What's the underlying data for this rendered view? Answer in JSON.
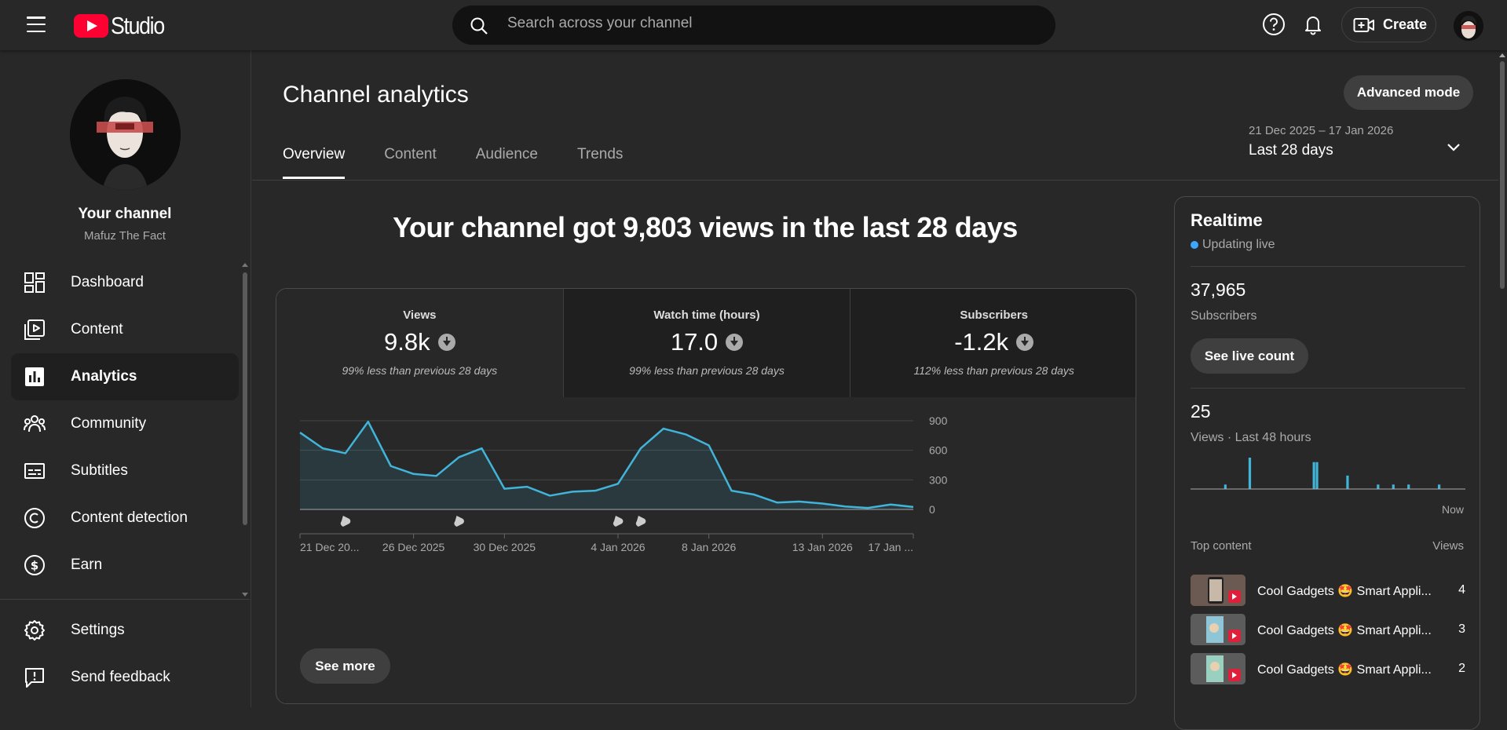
{
  "app": {
    "logo_text": "Studio"
  },
  "search": {
    "placeholder": "Search across your channel"
  },
  "header": {
    "create_label": "Create"
  },
  "channel": {
    "name": "Your channel",
    "handle": "Mafuz The Fact"
  },
  "sidebar": {
    "items": [
      {
        "label": "Dashboard",
        "icon": "dashboard-icon",
        "active": false
      },
      {
        "label": "Content",
        "icon": "content-icon",
        "active": false
      },
      {
        "label": "Analytics",
        "icon": "analytics-icon",
        "active": true
      },
      {
        "label": "Community",
        "icon": "community-icon",
        "active": false
      },
      {
        "label": "Subtitles",
        "icon": "subtitles-icon",
        "active": false
      },
      {
        "label": "Content detection",
        "icon": "content-detection-icon",
        "active": false
      },
      {
        "label": "Earn",
        "icon": "earn-icon",
        "active": false
      }
    ],
    "bottom_items": [
      {
        "label": "Settings",
        "icon": "settings-icon"
      },
      {
        "label": "Send feedback",
        "icon": "feedback-icon"
      }
    ]
  },
  "page": {
    "title": "Channel analytics",
    "advanced_mode_label": "Advanced mode",
    "tabs": [
      {
        "label": "Overview",
        "active": true
      },
      {
        "label": "Content",
        "active": false
      },
      {
        "label": "Audience",
        "active": false
      },
      {
        "label": "Trends",
        "active": false
      }
    ],
    "date_range": "21 Dec 2025 – 17 Jan 2026",
    "date_label": "Last 28 days",
    "headline": "Your channel got 9,803 views in the last 28 days",
    "see_more_label": "See more"
  },
  "metrics": [
    {
      "label": "Views",
      "value": "9.8k",
      "note": "99% less than previous 28 days",
      "selected": true
    },
    {
      "label": "Watch time (hours)",
      "value": "17.0",
      "note": "99% less than previous 28 days",
      "selected": false
    },
    {
      "label": "Subscribers",
      "value": "-1.2k",
      "note": "112% less than previous 28 days",
      "selected": false
    }
  ],
  "chart_data": {
    "type": "area",
    "series": [
      {
        "name": "Views",
        "values": [
          780,
          620,
          570,
          890,
          440,
          360,
          340,
          530,
          620,
          210,
          230,
          140,
          180,
          190,
          260,
          620,
          820,
          760,
          650,
          190,
          150,
          70,
          80,
          60,
          30,
          15,
          50,
          25
        ]
      }
    ],
    "x_tick_labels": [
      "21 Dec 20...",
      "26 Dec 2025",
      "30 Dec 2025",
      "4 Jan 2026",
      "8 Jan 2026",
      "13 Jan 2026",
      "17 Jan ..."
    ],
    "x_tick_indices": [
      0,
      5,
      9,
      14,
      18,
      23,
      27
    ],
    "y_ticks": [
      0,
      300,
      600,
      900
    ],
    "ylim": [
      0,
      900
    ],
    "y_axis_position": "right",
    "grid": true,
    "short_markers_at_indices": [
      2,
      7,
      14,
      15
    ],
    "line_color": "#41b4d9"
  },
  "realtime": {
    "title": "Realtime",
    "live_label": "Updating live",
    "subscribers_value": "37,965",
    "subscribers_label": "Subscribers",
    "live_count_label": "See live count",
    "views_value": "25",
    "views_label": "Views · Last 48 hours",
    "now_label": "Now",
    "bars": [
      0,
      0,
      0,
      0,
      0,
      0,
      0,
      0,
      0,
      0,
      0,
      1,
      0,
      0,
      0,
      0,
      0,
      0,
      0,
      7,
      0,
      0,
      0,
      0,
      0,
      0,
      0,
      0,
      0,
      0,
      0,
      0,
      0,
      0,
      0,
      0,
      0,
      0,
      0,
      0,
      6,
      6,
      0,
      0,
      0,
      0,
      0,
      0,
      0,
      0,
      0,
      3,
      0,
      0,
      0,
      0,
      0,
      0,
      0,
      0,
      0,
      1,
      0,
      0,
      0,
      0,
      1,
      0,
      0,
      0,
      0,
      1,
      0,
      0,
      0,
      0,
      0,
      0,
      0,
      0,
      0,
      1,
      0,
      0,
      0,
      0,
      0,
      0,
      0,
      0
    ],
    "top_content_label": "Top content",
    "views_col_label": "Views",
    "top_content": [
      {
        "title": "Cool Gadgets 🤩 Smart Appli...",
        "views": "4"
      },
      {
        "title": "Cool Gadgets 🤩 Smart Appli...",
        "views": "3"
      },
      {
        "title": "Cool Gadgets 🤩 Smart Appli...",
        "views": "2"
      }
    ]
  }
}
